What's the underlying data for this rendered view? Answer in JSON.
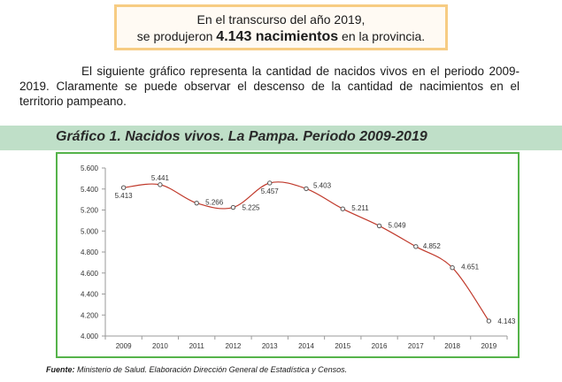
{
  "callout": {
    "line1": "En el transcurso del año 2019,",
    "line2_pre": "se produjeron",
    "line2_bold": "4.143 nacimientos",
    "line2_post": "en la provincia."
  },
  "intro_text": "El siguiente gráfico representa la cantidad de nacidos vivos en el periodo 2009-2019. Claramente se puede observar el descenso de la cantidad de nacimientos en el territorio pampeano.",
  "chart_heading": "Gráfico 1. Nacidos vivos. La Pampa. Periodo 2009-2019",
  "source": {
    "label": "Fuente:",
    "text": "Ministerio de Salud. Elaboración Dirección General de Estadística y Censos."
  },
  "chart_data": {
    "type": "line",
    "title": "Gráfico 1. Nacidos vivos. La Pampa. Periodo 2009-2019",
    "categories": [
      "2009",
      "2010",
      "2011",
      "2012",
      "2013",
      "2014",
      "2015",
      "2016",
      "2017",
      "2018",
      "2019"
    ],
    "values": [
      5413,
      5441,
      5266,
      5225,
      5457,
      5403,
      5211,
      5049,
      4852,
      4651,
      4143
    ],
    "data_labels": [
      "5.413",
      "5.441",
      "5.266",
      "5.225",
      "5.457",
      "5.403",
      "5.211",
      "5.049",
      "4.852",
      "4.651",
      "4.143"
    ],
    "ylim": [
      4000,
      5600
    ],
    "yticks": [
      4000,
      4200,
      4400,
      4600,
      4800,
      5000,
      5200,
      5400,
      5600
    ],
    "ytick_labels": [
      "4.000",
      "4.200",
      "4.400",
      "4.600",
      "4.800",
      "5.000",
      "5.200",
      "5.400",
      "5.600"
    ],
    "grid": false,
    "legend": "none",
    "line_color": "#c0392b",
    "marker_color": "#555555"
  }
}
